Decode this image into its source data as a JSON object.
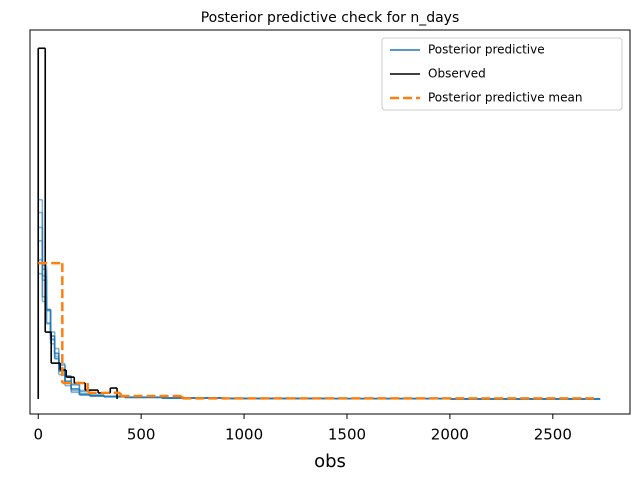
{
  "chart_data": {
    "type": "step",
    "title": "Posterior predictive check for n_days",
    "x_label": "obs",
    "xlim": [
      -40,
      2875
    ],
    "xticks": [
      0,
      500,
      1000,
      1500,
      2000,
      2500
    ],
    "ylim": [
      -0.00074,
      0.0182
    ],
    "legend": "upper right",
    "series": [
      {
        "name": "Posterior predictive",
        "color": "#1f77b4",
        "edges": [
          0,
          20,
          40,
          60,
          80,
          100,
          130,
          160,
          200,
          250,
          320,
          420,
          600,
          900,
          1400,
          2000,
          2730
        ],
        "samples": [
          [
            0.0092,
            0.0064,
            0.0044,
            0.0031,
            0.0021,
            0.0014,
            0.0008,
            0.00042,
            0.0002,
            0.00015,
            0.00012,
            8e-05,
            5e-05,
            3e-05,
            1.5e-05,
            5e-06
          ],
          [
            0.0078,
            0.00586,
            0.00441,
            0.00331,
            0.00249,
            0.00174,
            0.00113,
            0.00069,
            0.00036,
            0.00015,
            0.00012,
            8e-05,
            5e-05,
            3e-05,
            1.5e-05,
            5e-06
          ],
          [
            0.00618,
            0.00481,
            0.00375,
            0.00292,
            0.00227,
            0.00166,
            0.00114,
            0.00074,
            0.00042,
            0.0002,
            0.00013,
            9e-05,
            5e-05,
            3e-05,
            1.5e-05,
            5e-06
          ],
          [
            0.00846,
            0.00607,
            0.00435,
            0.00311,
            0.00223,
            0.00147,
            0.00089,
            0.0005,
            0.00024,
            0.00017,
            0.00012,
            8e-05,
            5e-05,
            3e-05,
            1.5e-05,
            5e-06
          ],
          [
            0.00686,
            0.00504,
            0.00371,
            0.00272,
            0.002,
            0.00136,
            0.00086,
            0.0005,
            0.00025,
            0.00016,
            0.00012,
            8e-05,
            5e-05,
            3e-05,
            1.5e-05,
            5e-06
          ],
          [
            0.00983,
            0.00659,
            0.00442,
            0.00296,
            0.00198,
            0.0012,
            0.00066,
            0.00033,
            0.0002,
            0.00015,
            0.00011,
            8e-05,
            5e-05,
            3e-05,
            1.5e-05,
            5e-06
          ]
        ]
      },
      {
        "name": "Observed",
        "color": "#000000",
        "edges": [
          0,
          34,
          63,
          107,
          136,
          175,
          228,
          291,
          350,
          383
        ],
        "values": [
          0.0173,
          0.0033,
          0.00177,
          0.00143,
          0.00108,
          0.00079,
          0.00044,
          0.0003,
          0.00054
        ]
      },
      {
        "name": "Posterior predictive mean",
        "color": "#ff7f0e",
        "linestyle": "dashed",
        "edges": [
          0,
          117,
          240,
          400,
          700,
          2700
        ],
        "values": [
          0.0067,
          0.00079,
          0.0003,
          0.00015,
          3e-05
        ]
      }
    ]
  }
}
